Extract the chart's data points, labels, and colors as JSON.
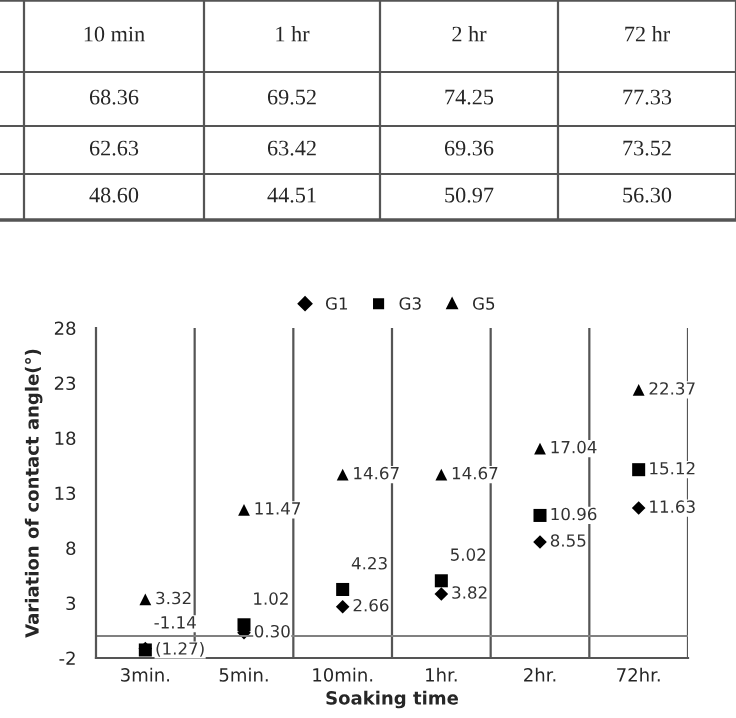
{
  "chart_data": {
    "type": "scatter",
    "categories": [
      "3min.",
      "5min.",
      "10min.",
      "1hr.",
      "2hr.",
      "72hr."
    ],
    "series": [
      {
        "name": "G1",
        "color": "#000000",
        "marker": "diamond",
        "values": [
          -1.14,
          0.3,
          2.66,
          3.82,
          8.55,
          11.63
        ],
        "value_labels": [
          "-1.14",
          "0.30",
          "2.66",
          "3.82",
          "8.55",
          "11.63"
        ]
      },
      {
        "name": "G3",
        "color": "#000000",
        "marker": "square",
        "values": [
          -1.27,
          1.02,
          4.23,
          5.02,
          10.96,
          15.12
        ],
        "value_labels": [
          "(1.27)",
          "1.02",
          "4.23",
          "5.02",
          "10.96",
          "15.12"
        ]
      },
      {
        "name": "G5",
        "color": "#000000",
        "marker": "triangle",
        "values": [
          3.32,
          11.47,
          14.67,
          14.67,
          17.04,
          22.37
        ],
        "value_labels": [
          "3.32",
          "11.47",
          "14.67",
          "14.67",
          "17.04",
          "22.37"
        ]
      }
    ],
    "xlabel": "Soaking time",
    "ylabel": "Variation of contact angle(°)",
    "ylim": [
      -2,
      28
    ],
    "yticks": [
      -2,
      3,
      8,
      13,
      18,
      23,
      28
    ],
    "ref_lines": [
      {
        "axis": "y",
        "value": 0,
        "color": "#808080"
      }
    ],
    "grid": "x",
    "legend": "top",
    "annotations": [
      "10 min",
      "1 hr",
      "2 hr",
      "72 hr",
      "68.36",
      "69.52",
      "74.25",
      "77.33",
      "62.63",
      "63.42",
      "69.36",
      "73.52",
      "48.60",
      "44.51",
      "50.97",
      "56.30"
    ]
  }
}
